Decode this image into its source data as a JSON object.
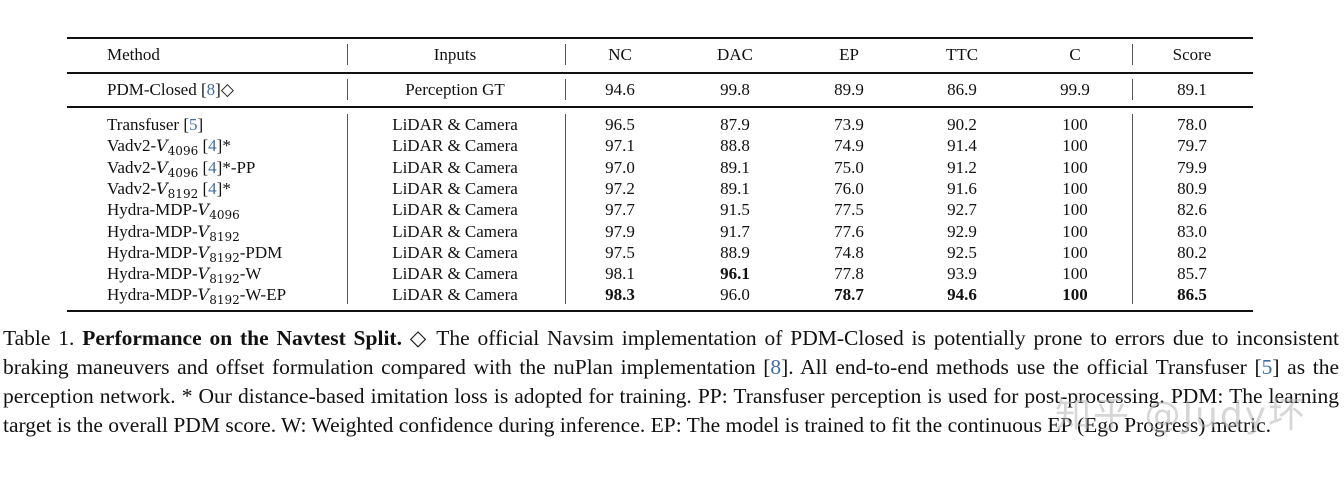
{
  "table": {
    "headers": [
      "Method",
      "Inputs",
      "NC",
      "DAC",
      "EP",
      "TTC",
      "C",
      "Score"
    ],
    "reference_row": {
      "method": "PDM-Closed",
      "cite": "8",
      "suffix": "◇",
      "inputs": "Perception GT",
      "values": [
        "94.6",
        "99.8",
        "89.9",
        "86.9",
        "99.9",
        "89.1"
      ]
    },
    "rows": [
      {
        "prefix": "Transfuser ",
        "sym": "",
        "sub": "",
        "cite": "5",
        "suffix": "",
        "inputs": "LiDAR & Camera",
        "values": [
          "96.5",
          "87.9",
          "73.9",
          "90.2",
          "100",
          "78.0"
        ],
        "bold": [
          false,
          false,
          false,
          false,
          false,
          false
        ]
      },
      {
        "prefix": "Vadv2-",
        "sym": "V",
        "sub": "4096",
        "cite": "4",
        "suffix": "*",
        "inputs": "LiDAR & Camera",
        "values": [
          "97.1",
          "88.8",
          "74.9",
          "91.4",
          "100",
          "79.7"
        ],
        "bold": [
          false,
          false,
          false,
          false,
          false,
          false
        ]
      },
      {
        "prefix": "Vadv2-",
        "sym": "V",
        "sub": "4096",
        "cite": "4",
        "suffix": "*-PP",
        "inputs": "LiDAR & Camera",
        "values": [
          "97.0",
          "89.1",
          "75.0",
          "91.2",
          "100",
          "79.9"
        ],
        "bold": [
          false,
          false,
          false,
          false,
          false,
          false
        ]
      },
      {
        "prefix": "Vadv2-",
        "sym": "V",
        "sub": "8192",
        "cite": "4",
        "suffix": "*",
        "inputs": "LiDAR & Camera",
        "values": [
          "97.2",
          "89.1",
          "76.0",
          "91.6",
          "100",
          "80.9"
        ],
        "bold": [
          false,
          false,
          false,
          false,
          false,
          false
        ]
      },
      {
        "prefix": "Hydra-MDP-",
        "sym": "V",
        "sub": "4096",
        "cite": "",
        "suffix": "",
        "inputs": "LiDAR & Camera",
        "values": [
          "97.7",
          "91.5",
          "77.5",
          "92.7",
          "100",
          "82.6"
        ],
        "bold": [
          false,
          false,
          false,
          false,
          false,
          false
        ]
      },
      {
        "prefix": "Hydra-MDP-",
        "sym": "V",
        "sub": "8192",
        "cite": "",
        "suffix": "",
        "inputs": "LiDAR & Camera",
        "values": [
          "97.9",
          "91.7",
          "77.6",
          "92.9",
          "100",
          "83.0"
        ],
        "bold": [
          false,
          false,
          false,
          false,
          false,
          false
        ]
      },
      {
        "prefix": "Hydra-MDP-",
        "sym": "V",
        "sub": "8192",
        "cite": "",
        "suffix": "-PDM",
        "inputs": "LiDAR & Camera",
        "values": [
          "97.5",
          "88.9",
          "74.8",
          "92.5",
          "100",
          "80.2"
        ],
        "bold": [
          false,
          false,
          false,
          false,
          false,
          false
        ]
      },
      {
        "prefix": "Hydra-MDP-",
        "sym": "V",
        "sub": "8192",
        "cite": "",
        "suffix": "-W",
        "inputs": "LiDAR & Camera",
        "values": [
          "98.1",
          "96.1",
          "77.8",
          "93.9",
          "100",
          "85.7"
        ],
        "bold": [
          false,
          true,
          false,
          false,
          false,
          false
        ]
      },
      {
        "prefix": "Hydra-MDP-",
        "sym": "V",
        "sub": "8192",
        "cite": "",
        "suffix": "-W-EP",
        "inputs": "LiDAR & Camera",
        "values": [
          "98.3",
          "96.0",
          "78.7",
          "94.6",
          "100",
          "86.5"
        ],
        "bold": [
          true,
          false,
          true,
          true,
          true,
          true
        ]
      }
    ]
  },
  "caption": {
    "label": "Table 1. ",
    "title": "Performance on the Navtest Split.",
    "part1": " ◇ The official Navsim implementation of PDM-Closed is potentially prone to errors due to inconsistent braking maneuvers and offset formulation compared with the nuPlan implementation [",
    "cite1": "8",
    "part2": "]. All end-to-end methods use the official Transfuser [",
    "cite2": "5",
    "part3": "] as the perception network. * Our distance-based imitation loss is adopted for training. PP: Transfuser perception is used for post-processing. PDM: The learning target is the overall PDM score. W: Weighted confidence during inference. EP: The model is trained to fit the continuous EP (Ego Progress) metric."
  },
  "watermark": "知乎 @Judy坏",
  "colors": {
    "citation": "#3d6fa5",
    "rules": "#111111"
  }
}
